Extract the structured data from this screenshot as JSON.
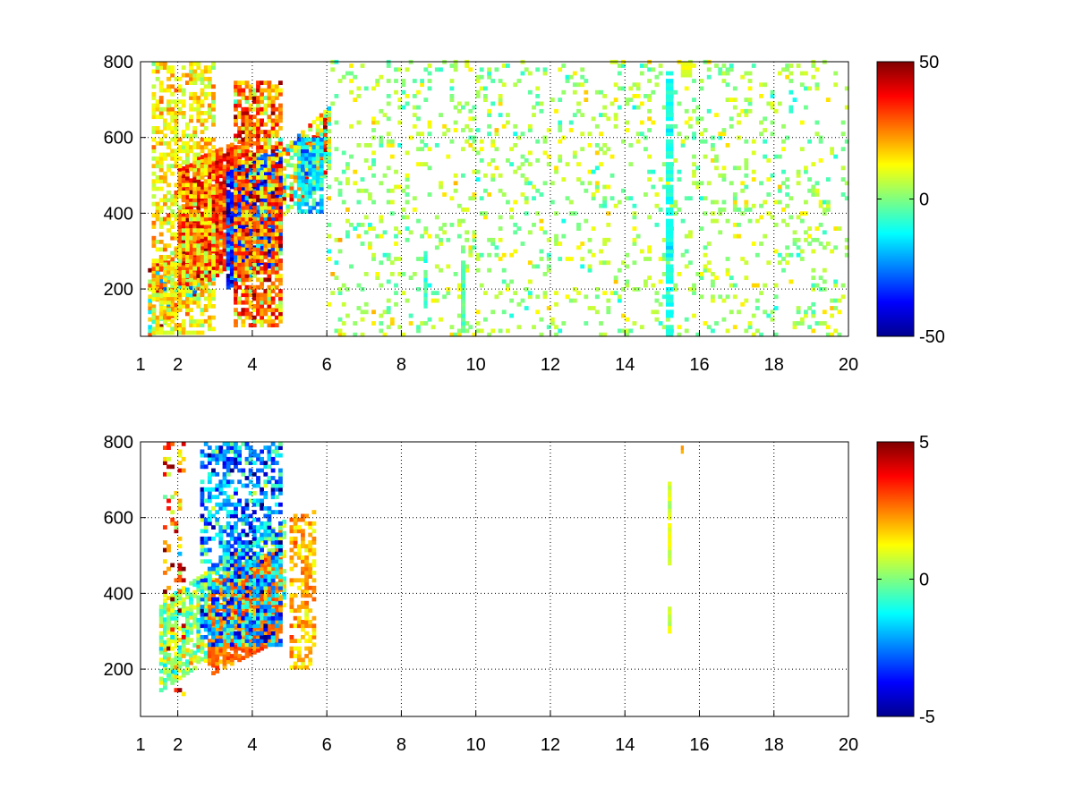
{
  "chart_data": [
    {
      "type": "heatmap",
      "title": "",
      "xlabel": "",
      "ylabel": "",
      "xlim": [
        1,
        20
      ],
      "ylim": [
        75,
        800
      ],
      "x_ticks": [
        1,
        2,
        4,
        6,
        8,
        10,
        12,
        14,
        16,
        18,
        20
      ],
      "y_ticks": [
        200,
        400,
        600,
        800
      ],
      "grid": true,
      "colormap": "jet",
      "colorbar": {
        "range": [
          -50,
          50
        ],
        "ticks": [
          50,
          0,
          -50
        ],
        "labels": [
          "50",
          "0",
          "-50"
        ]
      },
      "clusters": [
        {
          "x": [
            1.2,
            6.0
          ],
          "ydiag": [
            70,
            180,
            0.09
          ],
          "density": 0.72,
          "value": 10,
          "spread": 26
        },
        {
          "x": [
            2.0,
            4.0
          ],
          "ydiag": [
            200,
            330,
            0.04
          ],
          "density": 0.9,
          "value": 34,
          "spread": 12
        },
        {
          "x": [
            3.3,
            4.7
          ],
          "ydiag": [
            200,
            310,
            0.05
          ],
          "density": 0.82,
          "value": -34,
          "spread": 12
        },
        {
          "x": [
            3.5,
            4.7
          ],
          "y": [
            100,
            750
          ],
          "density": 0.7,
          "value": 24,
          "spread": 18
        },
        {
          "x": [
            5.2,
            5.8
          ],
          "y": [
            400,
            600
          ],
          "density": 0.75,
          "value": -16,
          "spread": 10
        },
        {
          "x": [
            1.3,
            3.0
          ],
          "y": [
            80,
            800
          ],
          "density": 0.5,
          "value": 14,
          "spread": 10
        },
        {
          "x": [
            6.0,
            20.0
          ],
          "y": [
            75,
            800
          ],
          "density": 0.13,
          "value": 4,
          "spread": 9
        }
      ],
      "stripes": [
        {
          "x": 15.1,
          "width": 0.2,
          "y": [
            75,
            770
          ],
          "value": -10
        },
        {
          "x": 15.5,
          "width": 0.3,
          "y": [
            760,
            800
          ],
          "value": 8
        },
        {
          "x": 9.6,
          "width": 0.12,
          "y": [
            75,
            270
          ],
          "value": -3
        },
        {
          "x": 8.6,
          "width": 0.1,
          "y": [
            150,
            310
          ],
          "value": -6
        }
      ]
    },
    {
      "type": "heatmap",
      "title": "",
      "xlabel": "",
      "ylabel": "",
      "xlim": [
        1,
        20
      ],
      "ylim": [
        75,
        800
      ],
      "x_ticks": [
        1,
        2,
        4,
        6,
        8,
        10,
        12,
        14,
        16,
        18,
        20
      ],
      "y_ticks": [
        200,
        400,
        600,
        800
      ],
      "grid": true,
      "colormap": "jet",
      "colorbar": {
        "range": [
          -5,
          5
        ],
        "ticks": [
          5,
          0,
          -5
        ],
        "labels": [
          "5",
          "0",
          "-5"
        ]
      },
      "clusters": [
        {
          "x": [
            1.5,
            4.8
          ],
          "ydiag": [
            140,
            240,
            0.065
          ],
          "density": 0.75,
          "value": 0.3,
          "spread": 1.4
        },
        {
          "x": [
            2.8,
            4.7
          ],
          "ydiag": [
            180,
            250,
            0.05
          ],
          "density": 0.8,
          "value": 2.6,
          "spread": 0.6
        },
        {
          "x": [
            2.6,
            4.7
          ],
          "y": [
            260,
            800
          ],
          "density": 0.55,
          "value": -2.2,
          "spread": 1.8
        },
        {
          "x": [
            5.0,
            5.6
          ],
          "y": [
            200,
            620
          ],
          "density": 0.55,
          "value": 2.0,
          "spread": 0.7
        },
        {
          "x": [
            1.6,
            2.2
          ],
          "y": [
            120,
            800
          ],
          "density": 0.2,
          "value": 2.5,
          "spread": 3.0
        }
      ],
      "stripes": [
        {
          "x": 15.15,
          "width": 0.1,
          "y": [
            475,
            690
          ],
          "value": 0.8
        },
        {
          "x": 15.15,
          "width": 0.1,
          "y": [
            295,
            370
          ],
          "value": 0.8
        },
        {
          "x": 15.5,
          "width": 0.08,
          "y": [
            770,
            790
          ],
          "value": 1.8
        }
      ]
    }
  ]
}
